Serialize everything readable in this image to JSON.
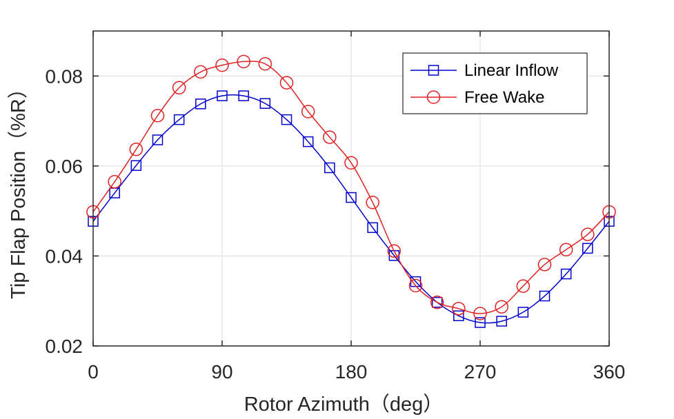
{
  "chart_data": {
    "type": "line",
    "xlabel": "Rotor Azimuth（deg）",
    "ylabel": "Tip Flap Position（%R）",
    "xlim": [
      0,
      360
    ],
    "ylim": [
      0.02,
      0.09
    ],
    "xticks": [
      0,
      90,
      180,
      270,
      360
    ],
    "xtick_labels": [
      "0",
      "90",
      "180",
      "270",
      "360"
    ],
    "yticks": [
      0.02,
      0.04,
      0.06,
      0.08
    ],
    "ytick_labels": [
      "0.02",
      "0.04",
      "0.06",
      "0.08"
    ],
    "grid": true,
    "legend_position": "top-right",
    "x": [
      0,
      15,
      30,
      45,
      60,
      75,
      90,
      105,
      120,
      135,
      150,
      165,
      180,
      195,
      210,
      225,
      240,
      255,
      270,
      285,
      300,
      315,
      330,
      345,
      360
    ],
    "series": [
      {
        "name": "Linear Inflow",
        "color": "#0000cc",
        "marker": "square",
        "values": [
          0.0477,
          0.054,
          0.0601,
          0.0658,
          0.0703,
          0.0738,
          0.0756,
          0.0756,
          0.0739,
          0.0703,
          0.0654,
          0.0596,
          0.053,
          0.0463,
          0.0401,
          0.0343,
          0.0297,
          0.0267,
          0.0252,
          0.0255,
          0.0275,
          0.0311,
          0.036,
          0.0417,
          0.0477
        ]
      },
      {
        "name": "Free Wake",
        "color": "#e02020",
        "marker": "circle",
        "values": [
          0.0498,
          0.0565,
          0.0637,
          0.0712,
          0.0774,
          0.0809,
          0.0824,
          0.0832,
          0.0827,
          0.0785,
          0.0721,
          0.0664,
          0.0607,
          0.0519,
          0.0411,
          0.0334,
          0.0297,
          0.0283,
          0.0272,
          0.0287,
          0.0333,
          0.0381,
          0.0414,
          0.0448,
          0.0498
        ]
      }
    ]
  }
}
